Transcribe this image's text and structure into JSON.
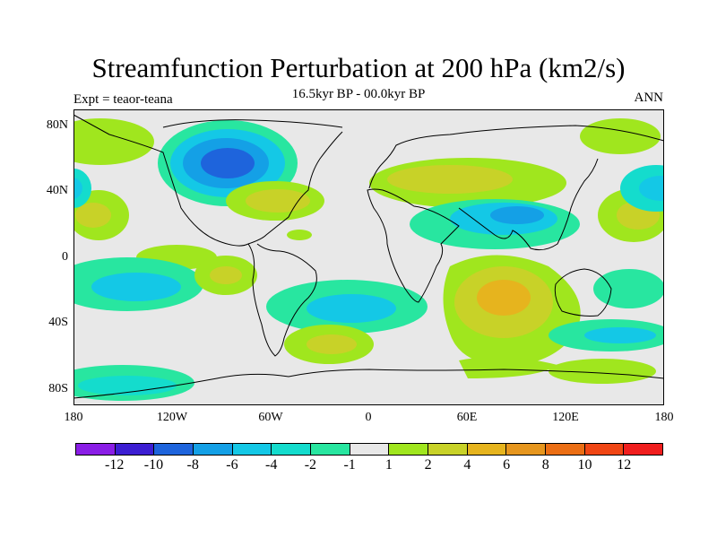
{
  "title": "Streamfunction Perturbation at 200 hPa (km2/s)",
  "subtitle_left": "Expt = teaor-teana",
  "subtitle_center": "16.5kyr BP - 00.0kyr BP",
  "subtitle_right": "ANN",
  "lat_labels": [
    "80N",
    "40N",
    "0",
    "40S",
    "80S"
  ],
  "lon_labels": [
    "180",
    "120W",
    "60W",
    "0",
    "60E",
    "120E",
    "180"
  ],
  "colorbar": {
    "colors": [
      "#8a1ee6",
      "#3c1ed2",
      "#1e64dc",
      "#14a0e6",
      "#14c8e6",
      "#14dccd",
      "#28e6a0",
      "#e8e8e8",
      "#a0e61e",
      "#c8d228",
      "#e6b41e",
      "#e6961e",
      "#eb6e14",
      "#f04614",
      "#f01e1e"
    ],
    "labels": [
      "-12",
      "-10",
      "-8",
      "-6",
      "-4",
      "-2",
      "-1",
      "1",
      "2",
      "4",
      "6",
      "8",
      "10",
      "12"
    ]
  },
  "chart_data": {
    "type": "heatmap",
    "title": "Streamfunction Perturbation at 200 hPa (km2/s)",
    "variable": "streamfunction perturbation",
    "level_hPa": 200,
    "units": "km2/s",
    "experiment": "teaor-teana",
    "period": "16.5kyr BP - 00.0kyr BP",
    "season": "ANN",
    "lon_range": [
      -180,
      180
    ],
    "lat_range": [
      -90,
      90
    ],
    "contour_levels": [
      -12,
      -10,
      -8,
      -6,
      -4,
      -2,
      -1,
      1,
      2,
      4,
      6,
      8,
      10,
      12
    ],
    "features": [
      {
        "name": "North America low",
        "lon": -95,
        "lat": 55,
        "value": -8
      },
      {
        "name": "North Pacific high",
        "lon": -150,
        "lat": 58,
        "value": 2
      },
      {
        "name": "Central Pacific high",
        "lon": -170,
        "lat": 22,
        "value": 4
      },
      {
        "name": "NW Atlantic high",
        "lon": -65,
        "lat": 32,
        "value": 4
      },
      {
        "name": "Eurasia high",
        "lon": 60,
        "lat": 44,
        "value": 4
      },
      {
        "name": "Asia low",
        "lon": 95,
        "lat": 28,
        "value": -4
      },
      {
        "name": "West Pacific high",
        "lon": 150,
        "lat": 25,
        "value": 4
      },
      {
        "name": "NW Pacific low",
        "lon": 170,
        "lat": 42,
        "value": -4
      },
      {
        "name": "South Pacific low",
        "lon": -150,
        "lat": -22,
        "value": -4
      },
      {
        "name": "Tropical Atlantic low",
        "lon": -25,
        "lat": -22,
        "value": -4
      },
      {
        "name": "Indian Ocean high",
        "lon": 65,
        "lat": -26,
        "value": 6
      },
      {
        "name": "South Atlantic high",
        "lon": -30,
        "lat": -52,
        "value": 4
      },
      {
        "name": "Southern Ocean high",
        "lon": 60,
        "lat": -70,
        "value": 2
      },
      {
        "name": "SW Pacific low",
        "lon": 150,
        "lat": -52,
        "value": -4
      },
      {
        "name": "Antarctic low",
        "lon": -150,
        "lat": -72,
        "value": -2
      }
    ]
  }
}
